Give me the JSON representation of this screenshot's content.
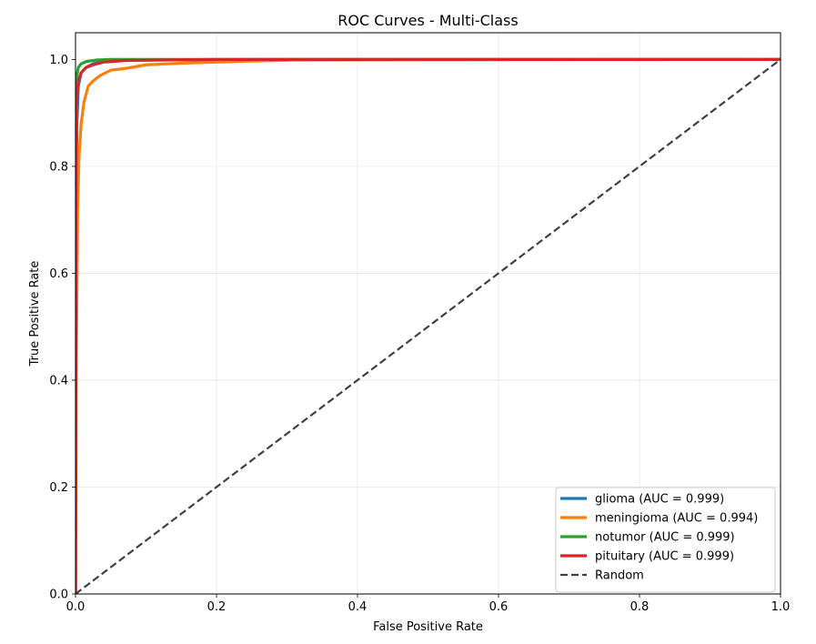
{
  "chart_data": {
    "type": "line",
    "title": "ROC Curves - Multi-Class",
    "xlabel": "False Positive Rate",
    "ylabel": "True Positive Rate",
    "xlim": [
      0.0,
      1.0
    ],
    "ylim": [
      0.0,
      1.05
    ],
    "xticks": [
      "0.0",
      "0.2",
      "0.4",
      "0.6",
      "0.8",
      "1.0"
    ],
    "yticks": [
      "0.0",
      "0.2",
      "0.4",
      "0.6",
      "0.8",
      "1.0"
    ],
    "grid": true,
    "legend_position": "lower-right",
    "series": [
      {
        "name": "glioma (AUC = 0.999)",
        "color": "#1f77b4",
        "style": "solid",
        "points": [
          [
            0.0,
            0.0
          ],
          [
            0.0005,
            0.5
          ],
          [
            0.001,
            0.75
          ],
          [
            0.002,
            0.88
          ],
          [
            0.004,
            0.95
          ],
          [
            0.008,
            0.975
          ],
          [
            0.015,
            0.985
          ],
          [
            0.025,
            0.992
          ],
          [
            0.04,
            0.996
          ],
          [
            0.06,
            0.998
          ],
          [
            0.1,
            0.999
          ],
          [
            0.3,
            1.0
          ],
          [
            1.0,
            1.0
          ]
        ]
      },
      {
        "name": "meningioma (AUC = 0.994)",
        "color": "#ff7f0e",
        "style": "solid",
        "points": [
          [
            0.0,
            0.0
          ],
          [
            0.001,
            0.4
          ],
          [
            0.003,
            0.72
          ],
          [
            0.005,
            0.82
          ],
          [
            0.008,
            0.88
          ],
          [
            0.012,
            0.92
          ],
          [
            0.018,
            0.95
          ],
          [
            0.025,
            0.96
          ],
          [
            0.035,
            0.97
          ],
          [
            0.05,
            0.98
          ],
          [
            0.07,
            0.983
          ],
          [
            0.1,
            0.99
          ],
          [
            0.15,
            0.993
          ],
          [
            0.2,
            0.995
          ],
          [
            0.25,
            0.997
          ],
          [
            0.31,
            0.999
          ],
          [
            0.5,
            0.9995
          ],
          [
            0.8,
            0.9998
          ],
          [
            1.0,
            1.0
          ]
        ]
      },
      {
        "name": "notumor (AUC = 0.999)",
        "color": "#2ca02c",
        "style": "solid",
        "points": [
          [
            0.0,
            0.0
          ],
          [
            0.0005,
            0.7
          ],
          [
            0.001,
            0.93
          ],
          [
            0.002,
            0.97
          ],
          [
            0.004,
            0.985
          ],
          [
            0.008,
            0.992
          ],
          [
            0.015,
            0.996
          ],
          [
            0.03,
            0.999
          ],
          [
            0.05,
            1.0
          ],
          [
            1.0,
            1.0
          ]
        ]
      },
      {
        "name": "pituitary (AUC = 0.999)",
        "color": "#d62728",
        "style": "solid",
        "points": [
          [
            0.0,
            0.0
          ],
          [
            0.0005,
            0.6
          ],
          [
            0.001,
            0.85
          ],
          [
            0.002,
            0.93
          ],
          [
            0.004,
            0.96
          ],
          [
            0.008,
            0.975
          ],
          [
            0.015,
            0.985
          ],
          [
            0.025,
            0.99
          ],
          [
            0.04,
            0.995
          ],
          [
            0.07,
            0.998
          ],
          [
            0.12,
            0.999
          ],
          [
            0.2,
            1.0
          ],
          [
            1.0,
            1.0
          ]
        ]
      },
      {
        "name": "Random",
        "color": "#404040",
        "style": "dashed",
        "points": [
          [
            0.0,
            0.0
          ],
          [
            1.0,
            1.0
          ]
        ]
      }
    ]
  }
}
